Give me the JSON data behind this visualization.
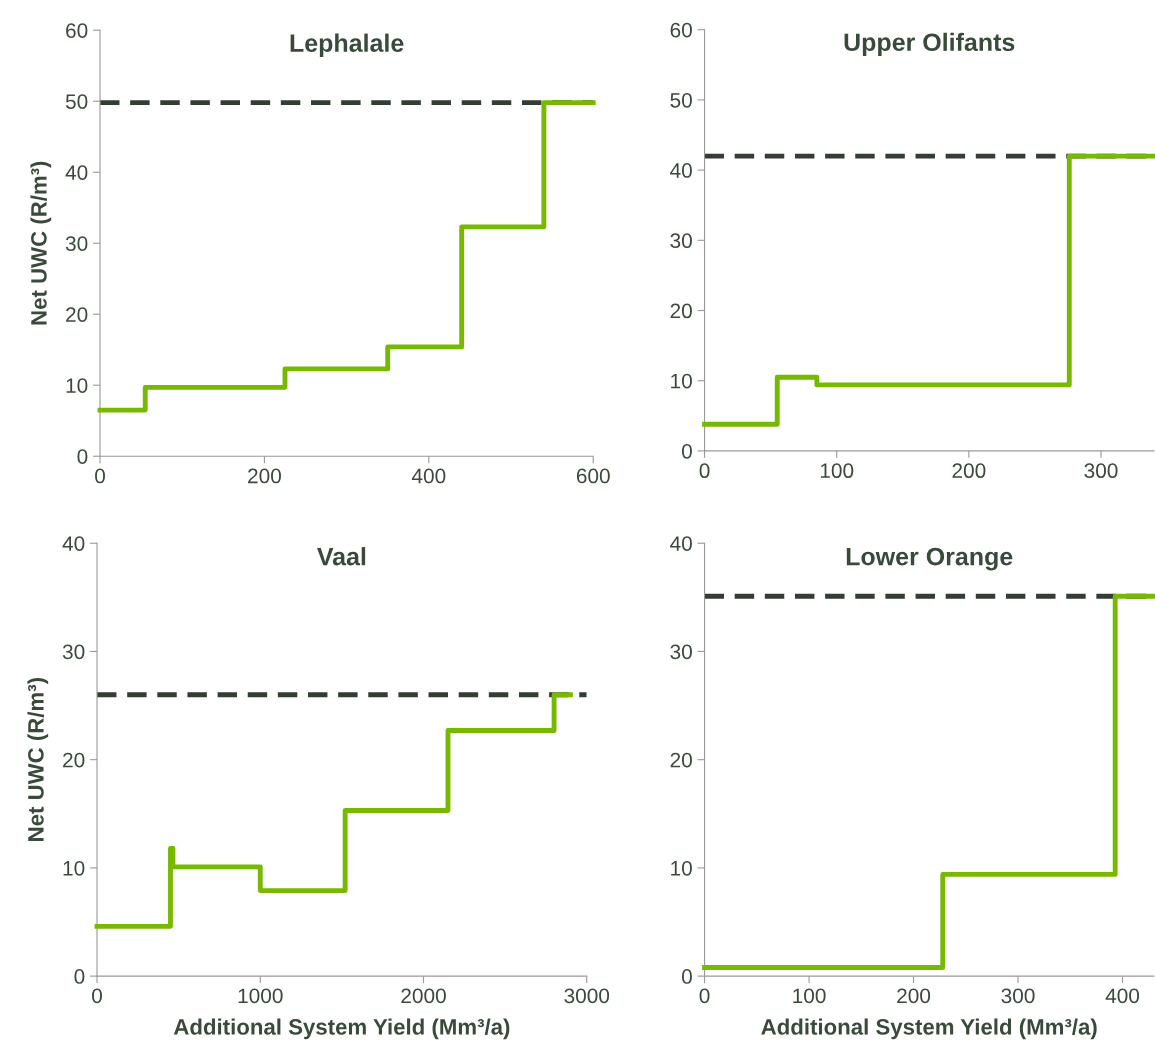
{
  "chart_data": [
    {
      "type": "step",
      "title": "Lephalale",
      "ylabel": "Net UWC (R/m³)",
      "xlim": [
        0,
        600
      ],
      "xticks": [
        0,
        200,
        400,
        600
      ],
      "ylim": [
        0,
        60
      ],
      "yticks": [
        0,
        10,
        20,
        30,
        40,
        50,
        60
      ],
      "grid": false,
      "line_style": "solid",
      "series": [
        {
          "color": "#77b800",
          "x": [
            0,
            55,
            225,
            350,
            440,
            540,
            600
          ],
          "values": [
            6.5,
            9.7,
            12.3,
            15.4,
            32.3,
            49.8,
            49.8
          ]
        }
      ],
      "ref_lines": [
        {
          "axis": "y",
          "value": 49.8,
          "color": "#333d33",
          "line_style": "dashed"
        }
      ]
    },
    {
      "type": "step",
      "title": "Upper Olifants",
      "xlim": [
        0,
        340
      ],
      "xticks": [
        0,
        100,
        200,
        300
      ],
      "ylim": [
        0,
        60
      ],
      "yticks": [
        0,
        10,
        20,
        30,
        40,
        50,
        60
      ],
      "grid": false,
      "line_style": "solid",
      "series": [
        {
          "color": "#77b800",
          "x": [
            0,
            55,
            85,
            276,
            340
          ],
          "values": [
            3.8,
            10.5,
            9.4,
            42,
            42
          ]
        }
      ],
      "ref_lines": [
        {
          "axis": "y",
          "value": 42,
          "color": "#333d33",
          "line_style": "dashed"
        }
      ]
    },
    {
      "type": "step",
      "title": "Vaal",
      "xlabel": "Additional System Yield (Mm³/a)",
      "ylabel": "Net UWC (R/m³)",
      "xlim": [
        0,
        3000
      ],
      "xticks": [
        0,
        1000,
        2000,
        3000
      ],
      "ylim": [
        0,
        40
      ],
      "yticks": [
        0,
        10,
        20,
        30,
        40
      ],
      "grid": false,
      "line_style": "solid",
      "series": [
        {
          "color": "#77b800",
          "x": [
            0,
            450,
            465,
            1000,
            1520,
            2150,
            2800,
            2900
          ],
          "values": [
            4.6,
            11.8,
            10.1,
            7.9,
            15.3,
            22.7,
            26.0,
            26.0
          ]
        }
      ],
      "ref_lines": [
        {
          "axis": "y",
          "value": 26.0,
          "color": "#333d33",
          "line_style": "dashed"
        }
      ]
    },
    {
      "type": "step",
      "title": "Lower Orange",
      "xlabel": "Additional System Yield (Mm³/a)",
      "xlim": [
        0,
        430
      ],
      "xticks": [
        0,
        100,
        200,
        300,
        400
      ],
      "ylim": [
        0,
        40
      ],
      "yticks": [
        0,
        10,
        20,
        30,
        40
      ],
      "grid": false,
      "line_style": "solid",
      "series": [
        {
          "color": "#77b800",
          "x": [
            0,
            228,
            393,
            430
          ],
          "values": [
            0.8,
            9.4,
            35.1,
            35.1
          ]
        }
      ],
      "ref_lines": [
        {
          "axis": "y",
          "value": 35.1,
          "color": "#333d33",
          "line_style": "dashed"
        }
      ]
    }
  ]
}
